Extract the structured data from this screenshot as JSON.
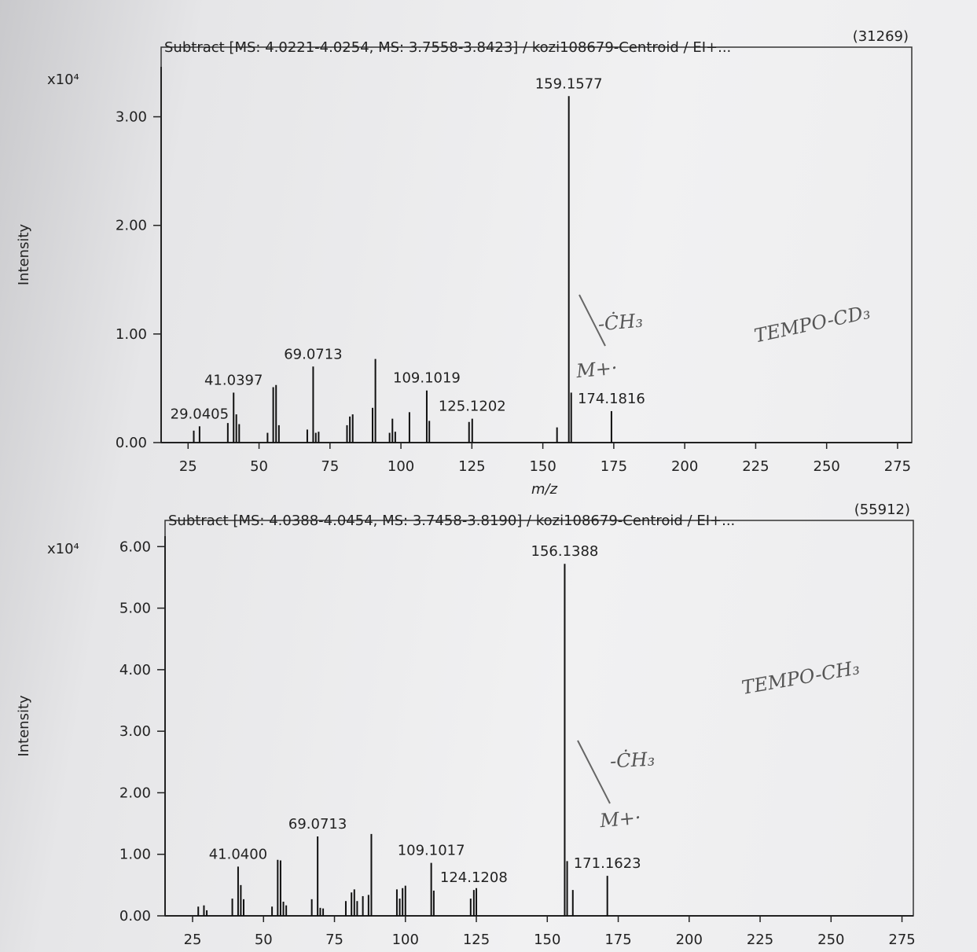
{
  "chart_data": [
    {
      "type": "bar",
      "title": "Subtract [MS: 4.0221-4.0254, MS: 3.7558-3.8423] / kozi108679-Centroid / EI+...",
      "annotation": "(31269)",
      "multiplier": "x10⁴",
      "ylabel": "Intensity",
      "xlabel": "m/z",
      "color": "#111111",
      "x": [
        27,
        29.0405,
        39,
        41.0397,
        42,
        43,
        53,
        55,
        56,
        57,
        67,
        69.0713,
        70,
        71,
        81,
        82,
        83,
        90,
        91,
        96,
        97,
        98,
        103,
        109.1019,
        110,
        124,
        125.1202,
        155,
        159.1577,
        160,
        174.1816
      ],
      "values": [
        0.11,
        0.15,
        0.18,
        0.46,
        0.26,
        0.17,
        0.09,
        0.51,
        0.53,
        0.16,
        0.12,
        0.7,
        0.09,
        0.1,
        0.16,
        0.24,
        0.26,
        0.32,
        0.77,
        0.09,
        0.22,
        0.1,
        0.28,
        0.48,
        0.2,
        0.19,
        0.22,
        0.14,
        3.19,
        0.46,
        0.29
      ],
      "x_labels": [
        null,
        "29.0405",
        null,
        "41.0397",
        null,
        null,
        null,
        null,
        null,
        null,
        null,
        "69.0713",
        null,
        null,
        null,
        null,
        null,
        null,
        null,
        null,
        null,
        null,
        null,
        "109.1019",
        null,
        null,
        "125.1202",
        null,
        "159.1577",
        null,
        "174.1816"
      ],
      "xlim": [
        15.5,
        280
      ],
      "xticks": [
        25,
        50,
        75,
        100,
        125,
        150,
        175,
        200,
        225,
        250,
        275
      ],
      "ylim": [
        0,
        3.46
      ],
      "yticks": [
        {
          "value": 0,
          "label": "0.00"
        },
        {
          "value": 1,
          "label": "1.00"
        },
        {
          "value": 2,
          "label": "2.00"
        },
        {
          "value": 3,
          "label": "3.00"
        }
      ],
      "handwritten_notes": [
        "-ĊH₃",
        "M+·",
        "TEMPO-CD₃"
      ]
    },
    {
      "type": "bar",
      "title": "Subtract [MS: 4.0388-4.0454, MS: 3.7458-3.8190] / kozi108679-Centroid / EI+...",
      "annotation": "(55912)",
      "multiplier": "x10⁴",
      "ylabel": "Intensity",
      "color": "#111111",
      "x": [
        27,
        29,
        30,
        39,
        41.04,
        42,
        43,
        53,
        55,
        56,
        57,
        58,
        67,
        69.0713,
        70,
        71,
        79,
        81,
        82,
        83,
        85,
        87,
        88,
        97,
        98,
        99,
        100,
        109.1017,
        110,
        123,
        124.1208,
        125,
        156.1388,
        157,
        159,
        171.1623
      ],
      "values": [
        0.15,
        0.17,
        0.09,
        0.28,
        0.8,
        0.5,
        0.27,
        0.15,
        0.91,
        0.9,
        0.23,
        0.17,
        0.27,
        1.29,
        0.13,
        0.12,
        0.24,
        0.38,
        0.43,
        0.24,
        0.32,
        0.34,
        1.33,
        0.43,
        0.28,
        0.45,
        0.49,
        0.86,
        0.41,
        0.28,
        0.42,
        0.45,
        5.72,
        0.89,
        0.42,
        0.65
      ],
      "x_labels": [
        null,
        null,
        null,
        null,
        "41.0400",
        null,
        null,
        null,
        null,
        null,
        null,
        null,
        null,
        "69.0713",
        null,
        null,
        null,
        null,
        null,
        null,
        null,
        null,
        null,
        null,
        null,
        null,
        null,
        "109.1017",
        null,
        null,
        "124.1208",
        null,
        "156.1388",
        null,
        null,
        "171.1623"
      ],
      "xlim": [
        15.3,
        279
      ],
      "xticks": [
        25,
        50,
        75,
        100,
        125,
        150,
        175,
        200,
        225,
        250,
        275
      ],
      "ylim": [
        0,
        6.17
      ],
      "yticks": [
        {
          "value": 0,
          "label": "0.00"
        },
        {
          "value": 1,
          "label": "1.00"
        },
        {
          "value": 2,
          "label": "2.00"
        },
        {
          "value": 3,
          "label": "3.00"
        },
        {
          "value": 4,
          "label": "4.00"
        },
        {
          "value": 5,
          "label": "5.00"
        },
        {
          "value": 6,
          "label": "6.00"
        }
      ],
      "handwritten_notes": [
        "-ĊH₃",
        "M+·",
        "TEMPO-CH₃"
      ]
    }
  ]
}
